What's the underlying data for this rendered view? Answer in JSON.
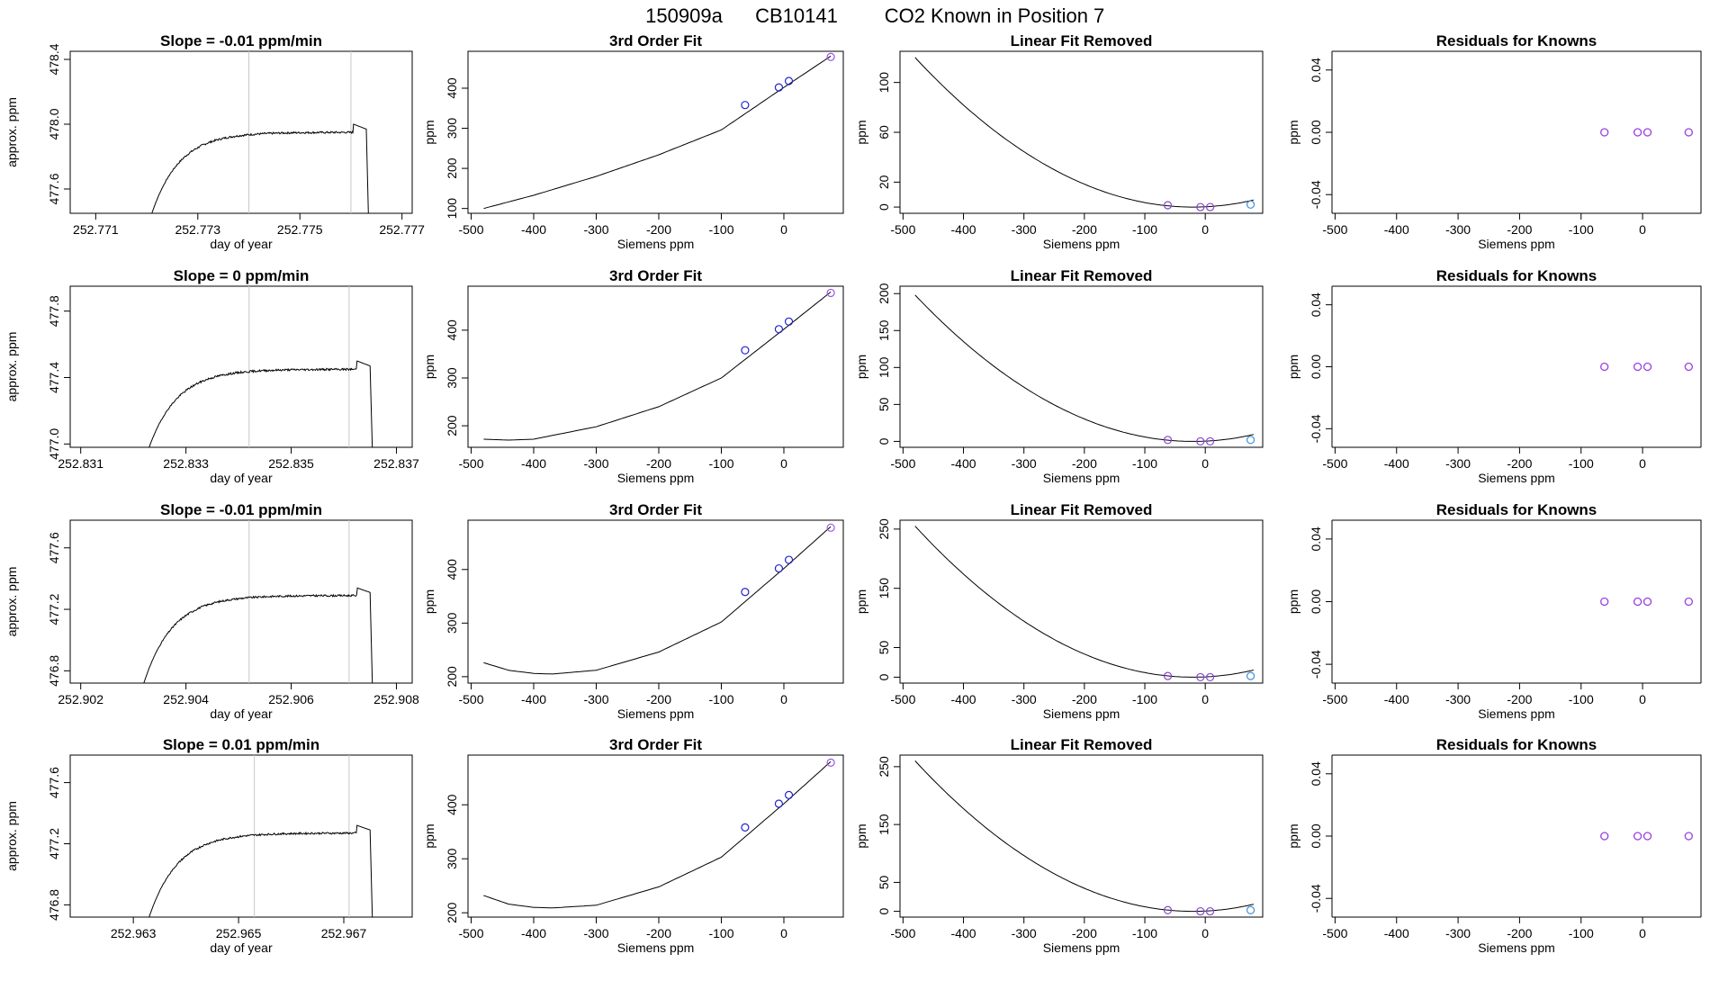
{
  "figure": {
    "title_parts": [
      "150909a",
      "CB10141",
      "CO2 Known in Position  7"
    ]
  },
  "chart_data": [
    {
      "type": "line",
      "row": 1,
      "kind": "time",
      "title": "Slope =  -0.01  ppm/min",
      "xlabel": "day of year",
      "ylabel": "approx. ppm",
      "xlim": [
        252.7705,
        252.7772
      ],
      "ylim": [
        477.45,
        478.45
      ],
      "xticks": [
        252.771,
        252.773,
        252.775,
        252.777
      ],
      "xtick_labels": [
        "252.771",
        "252.773",
        "252.775",
        "252.777"
      ],
      "yticks": [
        477.6,
        478.0,
        478.4
      ],
      "ytick_labels": [
        "477.6",
        "478.0",
        "478.4"
      ],
      "vlines": [
        252.774,
        252.776
      ],
      "t_start": 252.7721,
      "t_end": 252.7763,
      "base": 477.45,
      "plateau": 477.95,
      "k": 0.0045,
      "noise": 0.012,
      "seed": 7
    },
    {
      "type": "line",
      "row": 1,
      "kind": "fit",
      "title": "3rd Order Fit",
      "xlabel": "Siemens ppm",
      "ylabel": "ppm",
      "xlim": [
        -505,
        95
      ],
      "ylim": [
        88,
        492
      ],
      "xticks": [
        -500,
        -400,
        -300,
        -200,
        -100,
        0
      ],
      "xtick_labels": [
        "-500",
        "-400",
        "-300",
        "-200",
        "-100",
        "0"
      ],
      "yticks": [
        100,
        200,
        300,
        400
      ],
      "ytick_labels": [
        "100",
        "200",
        "300",
        "400"
      ],
      "curve_x": [
        -480,
        -400,
        -300,
        -200,
        -100,
        0,
        75
      ],
      "curve_y": [
        100,
        133,
        180,
        234,
        296,
        402,
        480
      ],
      "points": [
        {
          "x": -62,
          "y": 358
        },
        {
          "x": -8,
          "y": 402
        },
        {
          "x": 8,
          "y": 418
        },
        {
          "x": 75,
          "y": 478
        }
      ]
    },
    {
      "type": "line",
      "row": 1,
      "kind": "linrem",
      "title": "Linear Fit Removed",
      "xlabel": "Siemens ppm",
      "ylabel": "ppm",
      "xlim": [
        -505,
        95
      ],
      "ylim": [
        -5,
        125
      ],
      "xticks": [
        -500,
        -400,
        -300,
        -200,
        -100,
        0
      ],
      "xtick_labels": [
        "-500",
        "-400",
        "-300",
        "-200",
        "-100",
        "0"
      ],
      "yticks": [
        0,
        20,
        60,
        100
      ],
      "ytick_labels": [
        "0",
        "20",
        "60",
        "100"
      ],
      "peak": 120,
      "xmin": -20,
      "xleft": -480,
      "points": [
        {
          "x": -62,
          "y": 1.5
        },
        {
          "x": -8,
          "y": 0
        },
        {
          "x": 8,
          "y": 0
        },
        {
          "x": 75,
          "y": 2
        }
      ]
    },
    {
      "type": "scatter",
      "row": 1,
      "kind": "resid",
      "title": "Residuals for Knowns",
      "xlabel": "Siemens ppm",
      "ylabel": "ppm",
      "xlim": [
        -505,
        95
      ],
      "ylim": [
        -0.052,
        0.052
      ],
      "xticks": [
        -500,
        -400,
        -300,
        -200,
        -100,
        0
      ],
      "xtick_labels": [
        "-500",
        "-400",
        "-300",
        "-200",
        "-100",
        "0"
      ],
      "yticks": [
        -0.04,
        0.0,
        0.04
      ],
      "ytick_labels": [
        "-0.04",
        "0.00",
        "0.04"
      ],
      "points": [
        {
          "x": -62,
          "y": 0
        },
        {
          "x": -8,
          "y": 0
        },
        {
          "x": 8,
          "y": 0
        },
        {
          "x": 75,
          "y": 0
        }
      ]
    },
    {
      "type": "line",
      "row": 2,
      "kind": "time",
      "title": "Slope =  0  ppm/min",
      "xlabel": "day of year",
      "ylabel": "approx. ppm",
      "xlim": [
        252.8308,
        252.8373
      ],
      "ylim": [
        476.98,
        477.95
      ],
      "xticks": [
        252.831,
        252.833,
        252.835,
        252.837
      ],
      "xtick_labels": [
        "252.831",
        "252.833",
        "252.835",
        "252.837"
      ],
      "yticks": [
        477.0,
        477.4,
        477.8
      ],
      "ytick_labels": [
        "477.0",
        "477.4",
        "477.8"
      ],
      "vlines": [
        252.8342,
        252.8361
      ],
      "t_start": 252.8323,
      "t_end": 252.8365,
      "base": 476.98,
      "plateau": 477.45,
      "k": 0.0045,
      "noise": 0.012,
      "seed": 19
    },
    {
      "type": "line",
      "row": 2,
      "kind": "fit",
      "title": "3rd Order Fit",
      "xlabel": "Siemens ppm",
      "ylabel": "ppm",
      "xlim": [
        -505,
        95
      ],
      "ylim": [
        155,
        492
      ],
      "xticks": [
        -500,
        -400,
        -300,
        -200,
        -100,
        0
      ],
      "xtick_labels": [
        "-500",
        "-400",
        "-300",
        "-200",
        "-100",
        "0"
      ],
      "yticks": [
        200,
        300,
        400
      ],
      "ytick_labels": [
        "200",
        "300",
        "400"
      ],
      "curve_x": [
        -480,
        -440,
        -400,
        -300,
        -200,
        -100,
        0,
        75
      ],
      "curve_y": [
        172,
        170,
        172,
        198,
        240,
        300,
        402,
        480
      ],
      "points": [
        {
          "x": -62,
          "y": 358
        },
        {
          "x": -8,
          "y": 402
        },
        {
          "x": 8,
          "y": 418
        },
        {
          "x": 75,
          "y": 478
        }
      ]
    },
    {
      "type": "line",
      "row": 2,
      "kind": "linrem",
      "title": "Linear Fit Removed",
      "xlabel": "Siemens ppm",
      "ylabel": "ppm",
      "xlim": [
        -505,
        95
      ],
      "ylim": [
        -8,
        210
      ],
      "xticks": [
        -500,
        -400,
        -300,
        -200,
        -100,
        0
      ],
      "xtick_labels": [
        "-500",
        "-400",
        "-300",
        "-200",
        "-100",
        "0"
      ],
      "yticks": [
        0,
        50,
        100,
        150,
        200
      ],
      "ytick_labels": [
        "0",
        "50",
        "100",
        "150",
        "200"
      ],
      "peak": 198,
      "xmin": -20,
      "xleft": -480,
      "points": [
        {
          "x": -62,
          "y": 2
        },
        {
          "x": -8,
          "y": 0
        },
        {
          "x": 8,
          "y": 0
        },
        {
          "x": 75,
          "y": 2
        }
      ]
    },
    {
      "type": "scatter",
      "row": 2,
      "kind": "resid",
      "title": "Residuals for Knowns",
      "xlabel": "Siemens ppm",
      "ylabel": "ppm",
      "xlim": [
        -505,
        95
      ],
      "ylim": [
        -0.052,
        0.052
      ],
      "xticks": [
        -500,
        -400,
        -300,
        -200,
        -100,
        0
      ],
      "xtick_labels": [
        "-500",
        "-400",
        "-300",
        "-200",
        "-100",
        "0"
      ],
      "yticks": [
        -0.04,
        0.0,
        0.04
      ],
      "ytick_labels": [
        "-0.04",
        "0.00",
        "0.04"
      ],
      "points": [
        {
          "x": -62,
          "y": 0
        },
        {
          "x": -8,
          "y": 0
        },
        {
          "x": 8,
          "y": 0
        },
        {
          "x": 75,
          "y": 0
        }
      ]
    },
    {
      "type": "line",
      "row": 3,
      "kind": "time",
      "title": "Slope =  -0.01  ppm/min",
      "xlabel": "day of year",
      "ylabel": "approx. ppm",
      "xlim": [
        252.9018,
        252.9083
      ],
      "ylim": [
        476.72,
        477.78
      ],
      "xticks": [
        252.902,
        252.904,
        252.906,
        252.908
      ],
      "xtick_labels": [
        "252.902",
        "252.904",
        "252.906",
        "252.908"
      ],
      "yticks": [
        476.8,
        477.2,
        477.6
      ],
      "ytick_labels": [
        "476.8",
        "477.2",
        "477.6"
      ],
      "vlines": [
        252.9052,
        252.9071
      ],
      "t_start": 252.9032,
      "t_end": 252.9075,
      "base": 476.72,
      "plateau": 477.29,
      "k": 0.0045,
      "noise": 0.012,
      "seed": 31
    },
    {
      "type": "line",
      "row": 3,
      "kind": "fit",
      "title": "3rd Order Fit",
      "xlabel": "Siemens ppm",
      "ylabel": "ppm",
      "xlim": [
        -505,
        95
      ],
      "ylim": [
        188,
        492
      ],
      "xticks": [
        -500,
        -400,
        -300,
        -200,
        -100,
        0
      ],
      "xtick_labels": [
        "-500",
        "-400",
        "-300",
        "-200",
        "-100",
        "0"
      ],
      "yticks": [
        200,
        300,
        400
      ],
      "ytick_labels": [
        "200",
        "300",
        "400"
      ],
      "curve_x": [
        -480,
        -440,
        -400,
        -370,
        -300,
        -200,
        -100,
        0,
        75
      ],
      "curve_y": [
        226,
        212,
        206,
        205,
        212,
        246,
        302,
        402,
        480
      ],
      "points": [
        {
          "x": -62,
          "y": 358
        },
        {
          "x": -8,
          "y": 402
        },
        {
          "x": 8,
          "y": 418
        },
        {
          "x": 75,
          "y": 478
        }
      ]
    },
    {
      "type": "line",
      "row": 3,
      "kind": "linrem",
      "title": "Linear Fit Removed",
      "xlabel": "Siemens ppm",
      "ylabel": "ppm",
      "xlim": [
        -505,
        95
      ],
      "ylim": [
        -10,
        265
      ],
      "xticks": [
        -500,
        -400,
        -300,
        -200,
        -100,
        0
      ],
      "xtick_labels": [
        "-500",
        "-400",
        "-300",
        "-200",
        "-100",
        "0"
      ],
      "yticks": [
        0,
        50,
        150,
        250
      ],
      "ytick_labels": [
        "0",
        "50",
        "150",
        "250"
      ],
      "peak": 255,
      "xmin": -20,
      "xleft": -480,
      "points": [
        {
          "x": -62,
          "y": 2
        },
        {
          "x": -8,
          "y": 0
        },
        {
          "x": 8,
          "y": 0
        },
        {
          "x": 75,
          "y": 2
        }
      ]
    },
    {
      "type": "scatter",
      "row": 3,
      "kind": "resid",
      "title": "Residuals for Knowns",
      "xlabel": "Siemens ppm",
      "ylabel": "ppm",
      "xlim": [
        -505,
        95
      ],
      "ylim": [
        -0.052,
        0.052
      ],
      "xticks": [
        -500,
        -400,
        -300,
        -200,
        -100,
        0
      ],
      "xtick_labels": [
        "-500",
        "-400",
        "-300",
        "-200",
        "-100",
        "0"
      ],
      "yticks": [
        -0.04,
        0.0,
        0.04
      ],
      "ytick_labels": [
        "-0.04",
        "0.00",
        "0.04"
      ],
      "points": [
        {
          "x": -62,
          "y": 0
        },
        {
          "x": -8,
          "y": 0
        },
        {
          "x": 8,
          "y": 0
        },
        {
          "x": 75,
          "y": 0
        }
      ]
    },
    {
      "type": "line",
      "row": 4,
      "kind": "time",
      "title": "Slope =  0.01  ppm/min",
      "xlabel": "day of year",
      "ylabel": "approx. ppm",
      "xlim": [
        252.9618,
        252.9683
      ],
      "ylim": [
        476.72,
        477.78
      ],
      "xticks": [
        252.963,
        252.965,
        252.967
      ],
      "xtick_labels": [
        "252.963",
        "252.965",
        "252.967"
      ],
      "yticks": [
        476.8,
        477.2,
        477.6
      ],
      "ytick_labels": [
        "476.8",
        "477.2",
        "477.6"
      ],
      "vlines": [
        252.9653,
        252.9671
      ],
      "t_start": 252.9633,
      "t_end": 252.9675,
      "base": 476.72,
      "plateau": 477.27,
      "k": 0.0045,
      "noise": 0.012,
      "seed": 43
    },
    {
      "type": "line",
      "row": 4,
      "kind": "fit",
      "title": "3rd Order Fit",
      "xlabel": "Siemens ppm",
      "ylabel": "ppm",
      "xlim": [
        -505,
        95
      ],
      "ylim": [
        192,
        492
      ],
      "xticks": [
        -500,
        -400,
        -300,
        -200,
        -100,
        0
      ],
      "xtick_labels": [
        "-500",
        "-400",
        "-300",
        "-200",
        "-100",
        "0"
      ],
      "yticks": [
        200,
        300,
        400
      ],
      "ytick_labels": [
        "200",
        "300",
        "400"
      ],
      "curve_x": [
        -480,
        -440,
        -400,
        -370,
        -300,
        -200,
        -100,
        0,
        75
      ],
      "curve_y": [
        232,
        216,
        210,
        209,
        214,
        248,
        303,
        402,
        480
      ],
      "points": [
        {
          "x": -62,
          "y": 358
        },
        {
          "x": -8,
          "y": 402
        },
        {
          "x": 8,
          "y": 418
        },
        {
          "x": 75,
          "y": 478
        }
      ]
    },
    {
      "type": "line",
      "row": 4,
      "kind": "linrem",
      "title": "Linear Fit Removed",
      "xlabel": "Siemens ppm",
      "ylabel": "ppm",
      "xlim": [
        -505,
        95
      ],
      "ylim": [
        -10,
        270
      ],
      "xticks": [
        -500,
        -400,
        -300,
        -200,
        -100,
        0
      ],
      "xtick_labels": [
        "-500",
        "-400",
        "-300",
        "-200",
        "-100",
        "0"
      ],
      "yticks": [
        0,
        50,
        150,
        250
      ],
      "ytick_labels": [
        "0",
        "50",
        "150",
        "250"
      ],
      "peak": 260,
      "xmin": -20,
      "xleft": -480,
      "points": [
        {
          "x": -62,
          "y": 2
        },
        {
          "x": -8,
          "y": 0
        },
        {
          "x": 8,
          "y": 0
        },
        {
          "x": 75,
          "y": 2
        }
      ]
    },
    {
      "type": "scatter",
      "row": 4,
      "kind": "resid",
      "title": "Residuals for Knowns",
      "xlabel": "Siemens ppm",
      "ylabel": "ppm",
      "xlim": [
        -505,
        95
      ],
      "ylim": [
        -0.052,
        0.052
      ],
      "xticks": [
        -500,
        -400,
        -300,
        -200,
        -100,
        0
      ],
      "xtick_labels": [
        "-500",
        "-400",
        "-300",
        "-200",
        "-100",
        "0"
      ],
      "yticks": [
        -0.04,
        0.0,
        0.04
      ],
      "ytick_labels": [
        "-0.04",
        "0.00",
        "0.04"
      ],
      "points": [
        {
          "x": -62,
          "y": 0
        },
        {
          "x": -8,
          "y": 0
        },
        {
          "x": 8,
          "y": 0
        },
        {
          "x": 75,
          "y": 0
        }
      ]
    }
  ]
}
